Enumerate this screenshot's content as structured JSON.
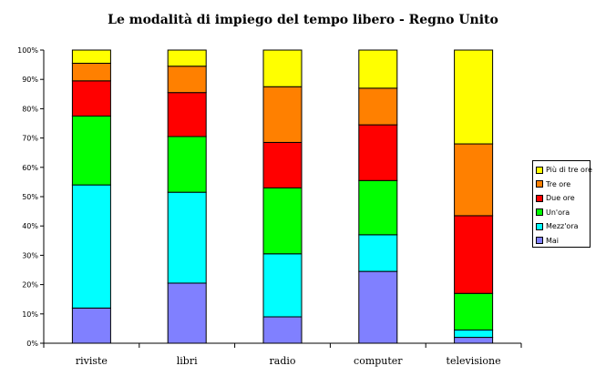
{
  "chart_data": {
    "type": "bar",
    "stacked": true,
    "normalized": true,
    "title": "Le modalità di impiego del tempo libero - Regno Unito",
    "categories": [
      "riviste",
      "libri",
      "radio",
      "computer",
      "televisione"
    ],
    "y_ticks": [
      "0%",
      "10%",
      "20%",
      "30%",
      "40%",
      "50%",
      "60%",
      "70%",
      "80%",
      "90%",
      "100%"
    ],
    "ylim": [
      0,
      100
    ],
    "grid": false,
    "legend_position": "right",
    "series": [
      {
        "name": "Mai",
        "color": "#8080ff",
        "values": [
          12,
          20.5,
          9,
          24.5,
          2
        ]
      },
      {
        "name": "Mezz'ora",
        "color": "#00ffff",
        "values": [
          42,
          31,
          21.5,
          12.5,
          2.5
        ]
      },
      {
        "name": "Un'ora",
        "color": "#00ff00",
        "values": [
          23.5,
          19,
          22.5,
          18.5,
          12.5
        ]
      },
      {
        "name": "Due ore",
        "color": "#ff0000",
        "values": [
          12,
          15,
          15.5,
          19,
          26.5
        ]
      },
      {
        "name": "Tre ore",
        "color": "#ff8000",
        "values": [
          6,
          9,
          19,
          12.5,
          24.5
        ]
      },
      {
        "name": "Più di tre ore",
        "color": "#ffff00",
        "values": [
          4.5,
          5.5,
          12.5,
          13,
          32
        ]
      }
    ]
  }
}
